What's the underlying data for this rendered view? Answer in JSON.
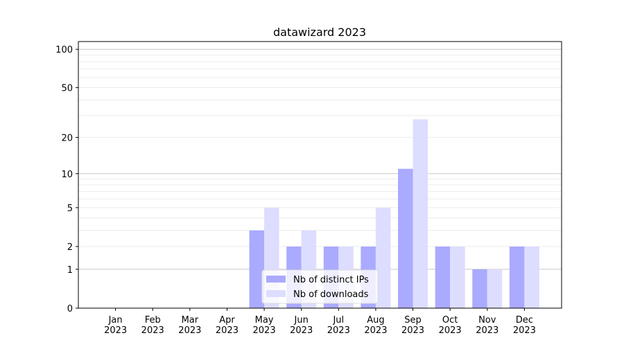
{
  "chart_data": {
    "type": "bar",
    "title": "datawizard 2023",
    "xlabel": "",
    "ylabel": "",
    "y_scale": "log1p",
    "ylim": [
      0,
      115
    ],
    "y_ticks": [
      0,
      1,
      2,
      5,
      10,
      20,
      50,
      100
    ],
    "grid": true,
    "legend_position": "lower center",
    "categories": [
      "Jan\n2023",
      "Feb\n2023",
      "Mar\n2023",
      "Apr\n2023",
      "May\n2023",
      "Jun\n2023",
      "Jul\n2023",
      "Aug\n2023",
      "Sep\n2023",
      "Oct\n2023",
      "Nov\n2023",
      "Dec\n2023"
    ],
    "series": [
      {
        "name": "Nb of distinct IPs",
        "color": "#aaaaff",
        "values": [
          0,
          0,
          0,
          0,
          3,
          2,
          2,
          2,
          11,
          2,
          1,
          2
        ]
      },
      {
        "name": "Nb of downloads",
        "color": "#ddddff",
        "values": [
          0,
          0,
          0,
          0,
          5,
          3,
          2,
          5,
          28,
          2,
          1,
          2
        ]
      }
    ]
  }
}
